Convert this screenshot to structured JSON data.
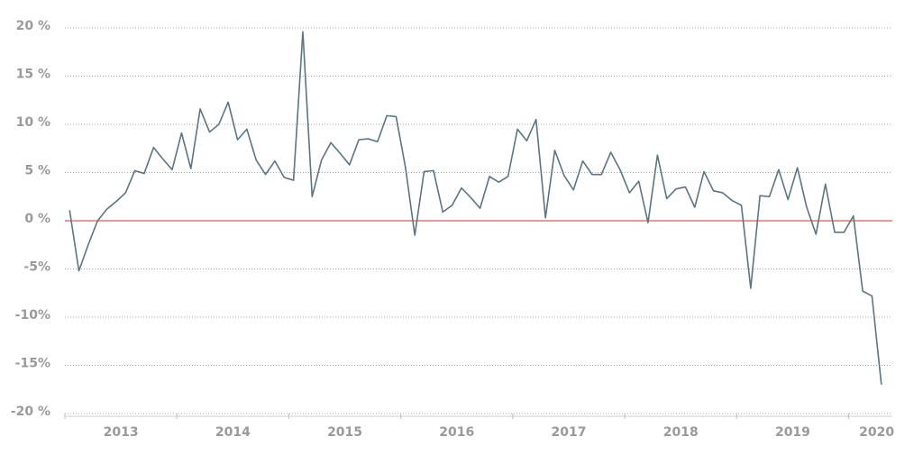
{
  "chart_data": {
    "type": "line",
    "x": [
      2013.042,
      2013.125,
      2013.208,
      2013.292,
      2013.375,
      2013.458,
      2013.542,
      2013.625,
      2013.708,
      2013.792,
      2013.875,
      2013.958,
      2014.042,
      2014.125,
      2014.208,
      2014.292,
      2014.375,
      2014.458,
      2014.542,
      2014.625,
      2014.708,
      2014.792,
      2014.875,
      2014.958,
      2015.042,
      2015.125,
      2015.208,
      2015.292,
      2015.375,
      2015.458,
      2015.542,
      2015.625,
      2015.708,
      2015.792,
      2015.875,
      2015.958,
      2016.042,
      2016.125,
      2016.208,
      2016.292,
      2016.375,
      2016.458,
      2016.542,
      2016.625,
      2016.708,
      2016.792,
      2016.875,
      2016.958,
      2017.042,
      2017.125,
      2017.208,
      2017.292,
      2017.375,
      2017.458,
      2017.542,
      2017.625,
      2017.708,
      2017.792,
      2017.875,
      2017.958,
      2018.042,
      2018.125,
      2018.208,
      2018.292,
      2018.375,
      2018.458,
      2018.542,
      2018.625,
      2018.708,
      2018.792,
      2018.875,
      2018.958,
      2019.042,
      2019.125,
      2019.208,
      2019.292,
      2019.375,
      2019.458,
      2019.542,
      2019.625,
      2019.708,
      2019.792,
      2019.875,
      2019.958,
      2020.042,
      2020.125,
      2020.208,
      2020.292
    ],
    "series": [
      {
        "color": "#5b7581",
        "values": [
          1.1,
          -5.2,
          -2.5,
          0.0,
          1.2,
          2.0,
          2.9,
          5.2,
          4.9,
          7.6,
          6.4,
          5.3,
          9.1,
          5.4,
          11.6,
          9.2,
          10.0,
          12.3,
          8.4,
          9.5,
          6.3,
          4.8,
          6.2,
          4.5,
          4.2,
          19.6,
          2.5,
          6.3,
          8.1,
          7.0,
          5.8,
          8.4,
          8.5,
          8.2,
          10.9,
          10.8,
          5.5,
          -1.5,
          5.1,
          5.2,
          0.9,
          1.6,
          3.4,
          2.4,
          1.3,
          4.6,
          4.0,
          4.6,
          9.5,
          8.3,
          10.5,
          0.3,
          7.3,
          4.7,
          3.2,
          6.2,
          4.8,
          4.8,
          7.1,
          5.3,
          2.9,
          4.1,
          -0.2,
          6.8,
          2.3,
          3.3,
          3.5,
          1.4,
          5.1,
          3.1,
          2.9,
          2.1,
          1.6,
          -7.0,
          2.6,
          2.5,
          5.3,
          2.2,
          5.5,
          1.4,
          -1.4,
          3.8,
          -1.2,
          -1.2,
          0.5,
          -7.3,
          -7.8,
          -17.0
        ]
      }
    ],
    "xlim": [
      2013,
      2020.39
    ],
    "xticks": [
      {
        "value": 2013.5,
        "label": "2013"
      },
      {
        "value": 2014.5,
        "label": "2014"
      },
      {
        "value": 2015.5,
        "label": "2015"
      },
      {
        "value": 2016.5,
        "label": "2016"
      },
      {
        "value": 2017.5,
        "label": "2017"
      },
      {
        "value": 2018.5,
        "label": "2018"
      },
      {
        "value": 2019.5,
        "label": "2019"
      },
      {
        "value": 2020.25,
        "label": "2020"
      }
    ],
    "xminorticks": [
      2013,
      2014,
      2015,
      2016,
      2017,
      2018,
      2019,
      2020
    ],
    "ylim": [
      -20,
      20
    ],
    "yticks": [
      {
        "value": 20,
        "label": "20 %"
      },
      {
        "value": 15,
        "label": "15 %"
      },
      {
        "value": 10,
        "label": "10 %"
      },
      {
        "value": 5,
        "label": "5 %"
      },
      {
        "value": 0,
        "label": "0 %"
      },
      {
        "value": -5,
        "label": "-5%"
      },
      {
        "value": -10,
        "label": "-10%"
      },
      {
        "value": -15,
        "label": "-15%"
      },
      {
        "value": -20,
        "label": "-20 %"
      }
    ],
    "grid": true,
    "zero_line_color": "#c0392b"
  }
}
